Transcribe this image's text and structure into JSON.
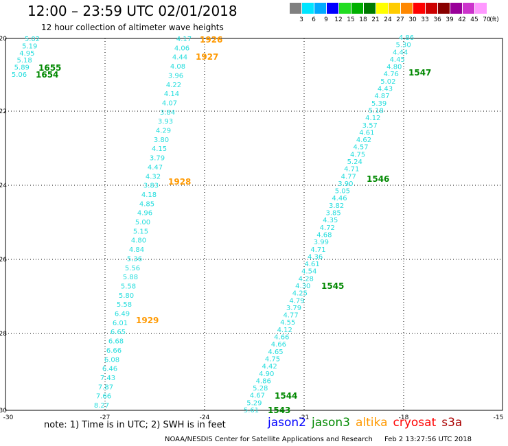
{
  "header": {
    "title": "12:00 – 23:59 UTC 02/01/2018",
    "subtitle": "12 hour collection of altimeter wave heights"
  },
  "legend": {
    "unit": "(ft)",
    "items": [
      {
        "label": "3",
        "color": "#808080"
      },
      {
        "label": "6",
        "color": "#00e5ff"
      },
      {
        "label": "9",
        "color": "#00aaff"
      },
      {
        "label": "12",
        "color": "#0000ff"
      },
      {
        "label": "15",
        "color": "#22dd22"
      },
      {
        "label": "18",
        "color": "#00b000"
      },
      {
        "label": "21",
        "color": "#007a00"
      },
      {
        "label": "24",
        "color": "#ffff00"
      },
      {
        "label": "27",
        "color": "#ffcc00"
      },
      {
        "label": "30",
        "color": "#ff8800"
      },
      {
        "label": "33",
        "color": "#ff0000"
      },
      {
        "label": "36",
        "color": "#cc0000"
      },
      {
        "label": "39",
        "color": "#880000"
      },
      {
        "label": "42",
        "color": "#990099"
      },
      {
        "label": "45",
        "color": "#cc33cc"
      },
      {
        "label": "70",
        "color": "#ff99ff"
      }
    ]
  },
  "colors": {
    "value": "#22dddd",
    "jason2": "#0000ff",
    "jason3": "#008800",
    "altika": "#ff9900",
    "cryosat": "#ff0000",
    "s3a": "#aa0000"
  },
  "axes": {
    "x_ticks": [
      "-30",
      "-27",
      "-24",
      "-21",
      "-18",
      "-15"
    ],
    "y_ticks": [
      "-20",
      "-22",
      "-24",
      "-26",
      "-28",
      "-30"
    ]
  },
  "tracks": [
    {
      "id": "jason3-1654-1655",
      "sat": "jason3",
      "values": [
        "5.02",
        "5.19",
        "4.95",
        "5.18",
        "5.89",
        "5.06"
      ],
      "labels": [
        "1655",
        "1654"
      ]
    },
    {
      "id": "altika-1926-1929",
      "sat": "altika",
      "values": [
        "4.17",
        "4.06",
        "4.44",
        "4.08",
        "3.96",
        "4.22",
        "4.14",
        "4.07",
        "3.84",
        "3.93",
        "4.29",
        "3.80",
        "4.15",
        "3.79",
        "4.47",
        "4.32",
        "3.83",
        "4.18",
        "4.85",
        "4.96",
        "5.00",
        "5.15",
        "4.80",
        "4.84",
        "5.36",
        "5.56",
        "5.88",
        "5.58",
        "5.80",
        "5.58",
        "6.49",
        "6.01",
        "6.65",
        "6.68",
        "6.66",
        "6.08",
        "6.46",
        "7.43",
        "7.87",
        "7.66",
        "8.27"
      ],
      "labels": [
        "1926",
        "1927",
        "1928",
        "1929"
      ]
    },
    {
      "id": "jason3-1543-1547",
      "sat": "jason3",
      "values": [
        "4.86",
        "5.30",
        "4.44",
        "4.45",
        "4.80",
        "4.76",
        "5.02",
        "4.43",
        "4.87",
        "5.39",
        "5.18",
        "4.12",
        "3.57",
        "4.61",
        "4.62",
        "4.57",
        "4.75",
        "5.24",
        "4.71",
        "4.77",
        "3.90",
        "5.05",
        "4.46",
        "3.82",
        "3.85",
        "4.35",
        "4.72",
        "4.68",
        "3.99",
        "4.71",
        "4.36",
        "4.61",
        "4.54",
        "4.28",
        "4.30",
        "4.25",
        "4.79",
        "3.79",
        "4.77",
        "4.55",
        "4.12",
        "4.66",
        "4.66",
        "4.65",
        "4.75",
        "4.42",
        "4.90",
        "4.86",
        "5.28",
        "4.67",
        "5.29",
        "5.61"
      ],
      "labels": [
        "1547",
        "1546",
        "1545",
        "1544",
        "1543"
      ]
    }
  ],
  "footer": {
    "note": "note: 1) Time is in UTC; 2) SWH is in feet",
    "satellites": [
      {
        "key": "jason2",
        "label": "jason2"
      },
      {
        "key": "jason3",
        "label": "jason3"
      },
      {
        "key": "altika",
        "label": "altika"
      },
      {
        "key": "cryosat",
        "label": "cryosat"
      },
      {
        "key": "s3a",
        "label": "s3a"
      }
    ],
    "credit": "NOAA/NESDIS Center for Satellite Applications and Research",
    "timestamp": "Feb  2 13:27:56 UTC 2018"
  }
}
